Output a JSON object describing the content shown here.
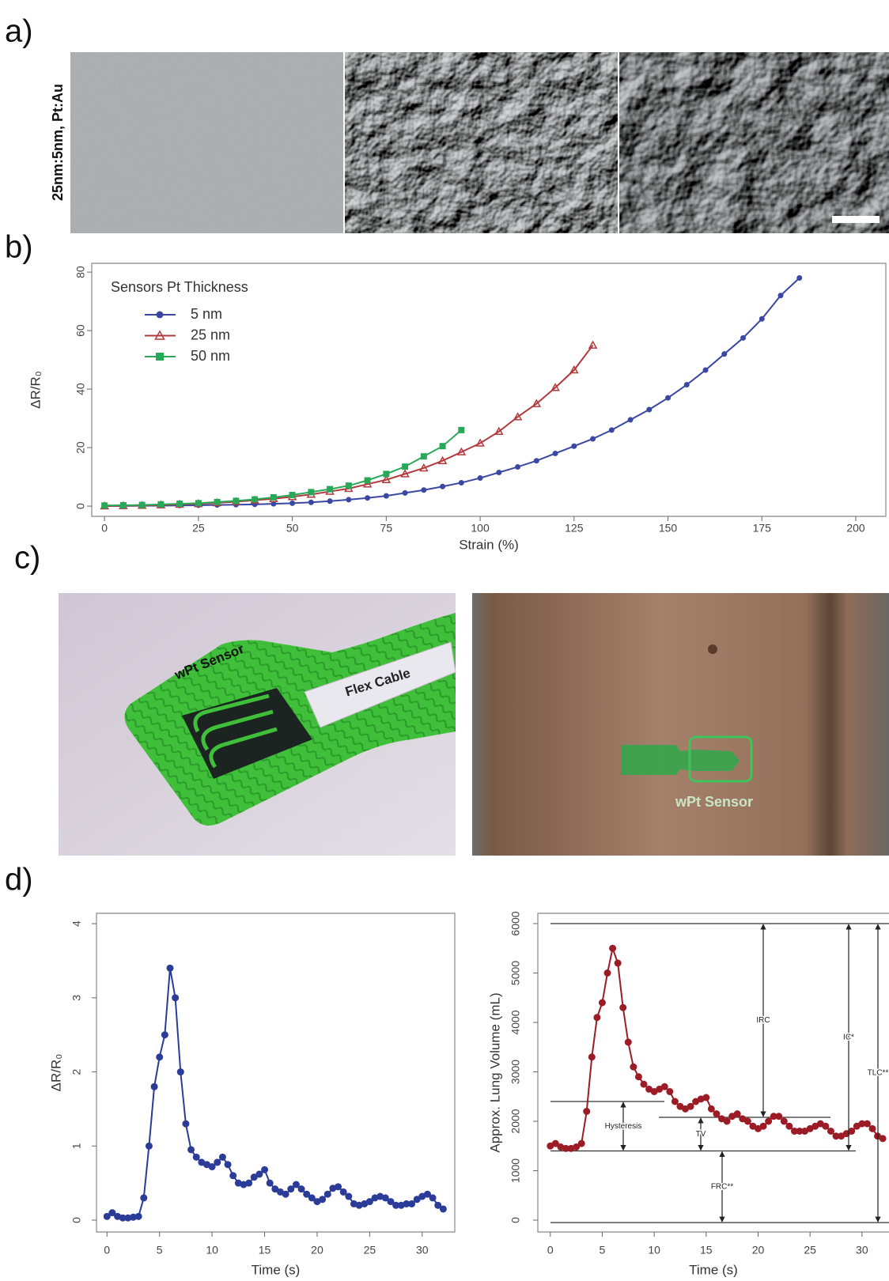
{
  "panel_labels": [
    "a)",
    "b)",
    "c)",
    "d)"
  ],
  "sem_label": "25nm:5nm, Pt:Au",
  "photo_labels": [
    "wPt Sensor",
    "Flex Cable",
    "wPt Sensor"
  ],
  "chart_data": [
    {
      "type": "line",
      "xlabel": "Strain (%)",
      "ylabel": "ΔR/R₀",
      "legend_title": "Sensors Pt Thickness",
      "legend": "upper left",
      "xlim": [
        -3.4,
        208
      ],
      "xticks": [
        0,
        25,
        50,
        75,
        100,
        125,
        150,
        175,
        200
      ],
      "ylim": [
        -3.5,
        83
      ],
      "yticks": [
        0,
        20,
        40,
        60,
        80
      ],
      "series": [
        {
          "name": "5 nm",
          "color": "#3a47a3",
          "marker": "o",
          "x": [
            0,
            5,
            10,
            15,
            20,
            25,
            30,
            35,
            40,
            45,
            50,
            55,
            60,
            65,
            70,
            75,
            80,
            85,
            90,
            95,
            100,
            105,
            110,
            115,
            120,
            125,
            130,
            135,
            140,
            145,
            150,
            155,
            160,
            165,
            170,
            175,
            180,
            185
          ],
          "values": [
            0,
            0.05,
            0.1,
            0.15,
            0.2,
            0.3,
            0.4,
            0.5,
            0.6,
            0.8,
            1.0,
            1.3,
            1.7,
            2.2,
            2.8,
            3.5,
            4.5,
            5.5,
            6.7,
            8.0,
            9.6,
            11.5,
            13.4,
            15.5,
            18,
            20.5,
            23,
            26,
            29.5,
            33,
            37,
            41.5,
            46.5,
            52,
            57.5,
            64,
            72,
            78
          ]
        },
        {
          "name": "25 nm",
          "color": "#b23a3e",
          "marker": "^",
          "x": [
            0,
            5,
            10,
            15,
            20,
            25,
            30,
            35,
            40,
            45,
            50,
            55,
            60,
            65,
            70,
            75,
            80,
            85,
            90,
            95,
            100,
            105,
            110,
            115,
            120,
            125,
            130
          ],
          "values": [
            0,
            0.1,
            0.2,
            0.4,
            0.6,
            0.8,
            1.1,
            1.5,
            2,
            2.5,
            3.2,
            4,
            5,
            6,
            7.5,
            9,
            11,
            13,
            15.5,
            18.5,
            21.5,
            25.5,
            30.5,
            35,
            40.5,
            46.5,
            55
          ]
        },
        {
          "name": "50 nm",
          "color": "#2aa85a",
          "marker": "s",
          "x": [
            0,
            5,
            10,
            15,
            20,
            25,
            30,
            35,
            40,
            45,
            50,
            55,
            60,
            65,
            70,
            75,
            80,
            85,
            90,
            95
          ],
          "values": [
            0.2,
            0.3,
            0.4,
            0.6,
            0.8,
            1,
            1.4,
            1.8,
            2.3,
            3,
            3.8,
            4.8,
            5.8,
            7,
            8.8,
            11,
            13.5,
            17,
            20.5,
            26
          ]
        }
      ]
    },
    {
      "type": "line",
      "xlabel": "Time (s)",
      "ylabel": "ΔR/R₀",
      "xlim": [
        -1.0,
        33.1
      ],
      "xticks": [
        0,
        5,
        10,
        15,
        20,
        25,
        30
      ],
      "ylim": [
        -0.16,
        4.14
      ],
      "yticks": [
        0,
        1,
        2,
        3,
        4
      ],
      "x": [
        0,
        0.5,
        1,
        1.5,
        2,
        2.5,
        3,
        3.5,
        4,
        4.5,
        5,
        5.5,
        6,
        6.5,
        7,
        7.5,
        8,
        8.5,
        9,
        9.5,
        10,
        10.5,
        11,
        11.5,
        12,
        12.5,
        13,
        13.5,
        14,
        14.5,
        15,
        15.5,
        16,
        16.5,
        17,
        17.5,
        18,
        18.5,
        19,
        19.5,
        20,
        20.5,
        21,
        21.5,
        22,
        22.5,
        23,
        23.5,
        24,
        24.5,
        25,
        25.5,
        26,
        26.5,
        27,
        27.5,
        28,
        28.5,
        29,
        29.5,
        30,
        30.5,
        31,
        31.5,
        32
      ],
      "series": [
        {
          "color": "#2b3c98",
          "values": [
            0.05,
            0.1,
            0.05,
            0.03,
            0.03,
            0.04,
            0.05,
            0.3,
            1.0,
            1.8,
            2.2,
            2.5,
            3.4,
            3.0,
            2.0,
            1.3,
            0.95,
            0.85,
            0.78,
            0.75,
            0.72,
            0.78,
            0.85,
            0.75,
            0.6,
            0.5,
            0.48,
            0.5,
            0.58,
            0.62,
            0.68,
            0.5,
            0.42,
            0.38,
            0.35,
            0.42,
            0.48,
            0.42,
            0.35,
            0.3,
            0.25,
            0.28,
            0.35,
            0.43,
            0.45,
            0.38,
            0.32,
            0.22,
            0.2,
            0.22,
            0.25,
            0.3,
            0.32,
            0.3,
            0.25,
            0.2,
            0.2,
            0.22,
            0.22,
            0.28,
            0.32,
            0.35,
            0.3,
            0.2,
            0.15
          ]
        }
      ]
    },
    {
      "type": "line",
      "xlabel": "Time (s)",
      "ylabel": "Approx. Lung Volume (mL)",
      "xlim": [
        -1.2,
        32.6
      ],
      "xticks": [
        0,
        5,
        10,
        15,
        20,
        25,
        30
      ],
      "ylim": [
        -240,
        6208
      ],
      "yticks": [
        0,
        1000,
        2000,
        3000,
        4000,
        5000,
        6000
      ],
      "x": [
        0,
        0.5,
        1,
        1.5,
        2,
        2.5,
        3,
        3.5,
        4,
        4.5,
        5,
        5.5,
        6,
        6.5,
        7,
        7.5,
        8,
        8.5,
        9,
        9.5,
        10,
        10.5,
        11,
        11.5,
        12,
        12.5,
        13,
        13.5,
        14,
        14.5,
        15,
        15.5,
        16,
        16.5,
        17,
        17.5,
        18,
        18.5,
        19,
        19.5,
        20,
        20.5,
        21,
        21.5,
        22,
        22.5,
        23,
        23.5,
        24,
        24.5,
        25,
        25.5,
        26,
        26.5,
        27,
        27.5,
        28,
        28.5,
        29,
        29.5,
        30,
        30.5,
        31,
        31.5,
        32
      ],
      "series": [
        {
          "color": "#9c1c26",
          "values": [
            1500,
            1550,
            1480,
            1450,
            1450,
            1480,
            1550,
            2200,
            3300,
            4100,
            4400,
            5000,
            5500,
            5200,
            4300,
            3600,
            3100,
            2900,
            2750,
            2650,
            2600,
            2650,
            2700,
            2600,
            2400,
            2300,
            2250,
            2300,
            2400,
            2450,
            2480,
            2250,
            2150,
            2050,
            2000,
            2100,
            2150,
            2050,
            2000,
            1900,
            1850,
            1900,
            2000,
            2100,
            2100,
            2000,
            1900,
            1800,
            1800,
            1800,
            1850,
            1900,
            1950,
            1900,
            1800,
            1700,
            1700,
            1750,
            1800,
            1900,
            1950,
            1950,
            1850,
            1700,
            1650
          ]
        }
      ],
      "reference_lines": [
        6000,
        2400,
        2080,
        1400,
        -50
      ],
      "annotations": [
        "IRC",
        "IC*",
        "TLC**",
        "Hysteresis",
        "TV",
        "FRC**"
      ]
    }
  ]
}
